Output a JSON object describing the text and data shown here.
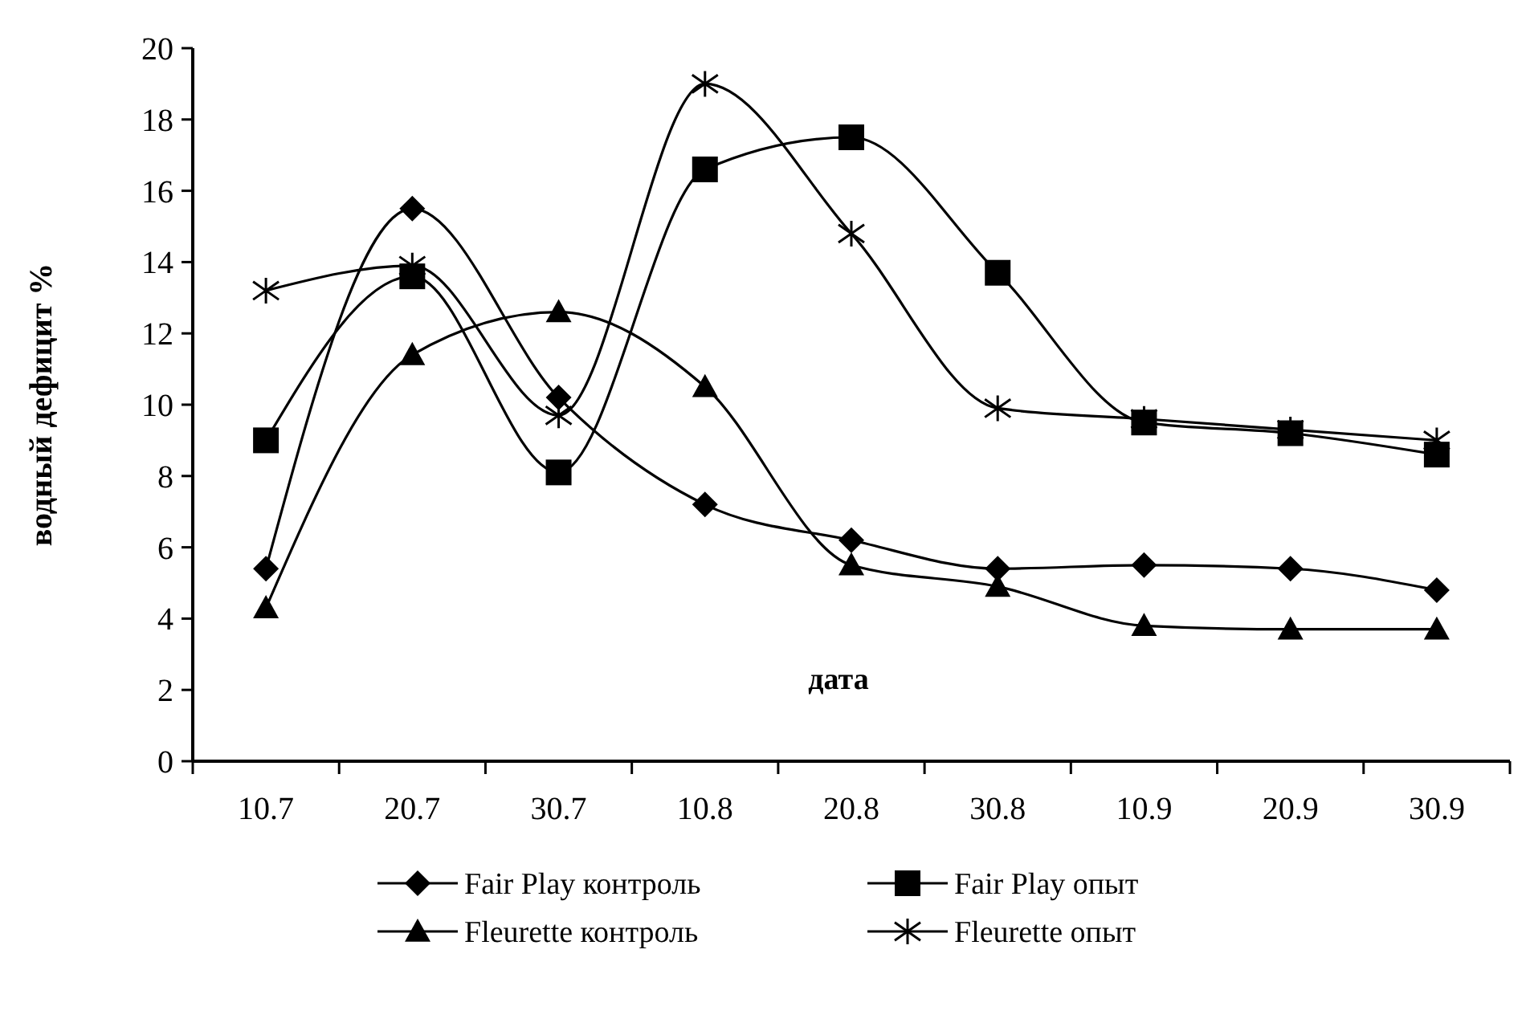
{
  "chart_data": {
    "type": "line",
    "xlabel": "дата",
    "ylabel": "водный дефицит %",
    "categories": [
      "10.7",
      "20.7",
      "30.7",
      "10.8",
      "20.8",
      "30.8",
      "10.9",
      "20.9",
      "30.9"
    ],
    "ylim": [
      0,
      20
    ],
    "yticks": [
      0,
      2,
      4,
      6,
      8,
      10,
      12,
      14,
      16,
      18,
      20
    ],
    "grid": false,
    "legend": "bottom",
    "line_style": "solid",
    "series": [
      {
        "name": "Fair Play контроль",
        "color": "#000000",
        "marker": "diamond",
        "values": [
          5.4,
          15.5,
          10.2,
          7.2,
          6.2,
          5.4,
          5.5,
          5.4,
          4.8
        ]
      },
      {
        "name": "Fair Play опыт",
        "color": "#000000",
        "marker": "square",
        "values": [
          9.0,
          13.6,
          8.1,
          16.6,
          17.5,
          13.7,
          9.5,
          9.2,
          8.6
        ]
      },
      {
        "name": "Fleurette контроль",
        "color": "#000000",
        "marker": "triangle",
        "values": [
          4.3,
          11.4,
          12.6,
          10.5,
          5.5,
          4.9,
          3.8,
          3.7,
          3.7
        ]
      },
      {
        "name": "Fleurette опыт",
        "color": "#000000",
        "marker": "cross",
        "values": [
          13.2,
          13.9,
          9.7,
          19.0,
          14.8,
          9.9,
          9.6,
          9.3,
          9.0
        ]
      }
    ]
  }
}
